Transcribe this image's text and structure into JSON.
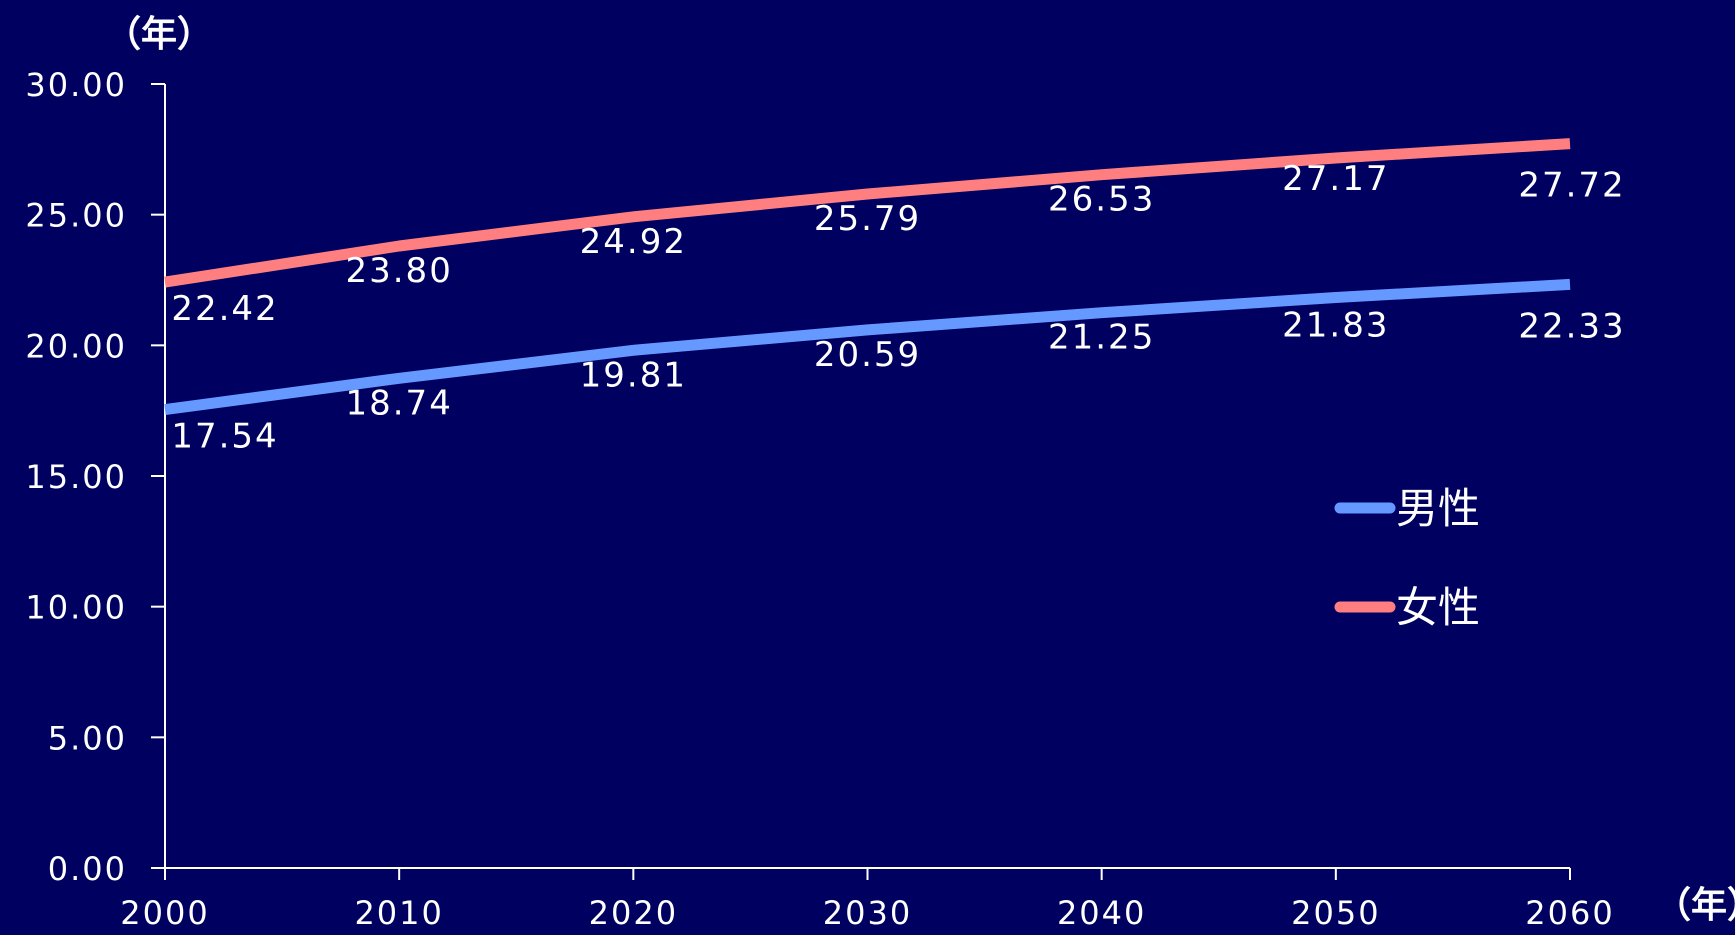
{
  "chart_data": {
    "type": "line",
    "y_unit_label": "（年）",
    "x_unit_label": "（年）",
    "x": [
      2000,
      2010,
      2020,
      2030,
      2040,
      2050,
      2060
    ],
    "x_tick_labels": [
      "2000",
      "2010",
      "2020",
      "2030",
      "2040",
      "2050",
      "2060"
    ],
    "ylim": [
      0,
      30
    ],
    "y_ticks": [
      0,
      5,
      10,
      15,
      20,
      25,
      30
    ],
    "y_tick_labels": [
      "0.00",
      "5.00",
      "10.00",
      "15.00",
      "20.00",
      "25.00",
      "30.00"
    ],
    "grid": false,
    "legend_position": "right",
    "series": [
      {
        "name": "男性",
        "color": "#6699ff",
        "values": [
          17.54,
          18.74,
          19.81,
          20.59,
          21.25,
          21.83,
          22.33
        ],
        "value_labels": [
          "17.54",
          "18.74",
          "19.81",
          "20.59",
          "21.25",
          "21.83",
          "22.33"
        ]
      },
      {
        "name": "女性",
        "color": "#ff7f80",
        "values": [
          22.42,
          23.8,
          24.92,
          25.79,
          26.53,
          27.17,
          27.72
        ],
        "value_labels": [
          "22.42",
          "23.80",
          "24.92",
          "25.79",
          "26.53",
          "27.17",
          "27.72"
        ]
      }
    ]
  }
}
